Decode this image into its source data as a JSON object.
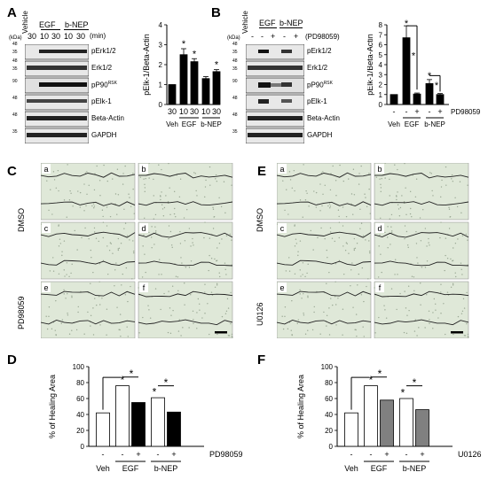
{
  "panels": {
    "A": "A",
    "B": "B",
    "C": "C",
    "D": "D",
    "E": "E",
    "F": "F"
  },
  "blot_A": {
    "kda": "(kDa)",
    "vehicle": "Vehicle",
    "egf": "EGF",
    "bnep": "b-NEP",
    "times": [
      "30",
      "10",
      "30",
      "10",
      "30"
    ],
    "min": "(min)",
    "rows": [
      {
        "marker": "48",
        "marker2": "35",
        "label": "pErk1/2"
      },
      {
        "marker": "48",
        "marker2": "35",
        "label": "Erk1/2"
      },
      {
        "marker": "90",
        "marker2": "",
        "label": "pP90",
        "sup": "RSK"
      },
      {
        "marker": "48",
        "marker2": "",
        "label": "pElk-1"
      },
      {
        "marker": "48",
        "marker2": "",
        "label": "Beta-Actin"
      },
      {
        "marker": "35",
        "marker2": "",
        "label": "GAPDH"
      }
    ]
  },
  "blot_B": {
    "kda": "(kDa)",
    "vehicle": "Vehicle",
    "egf": "EGF",
    "bnep": "b-NEP",
    "signs": [
      "-",
      "-",
      "+",
      "-",
      "+"
    ],
    "inhibitor": "(PD98059)",
    "rows": [
      {
        "marker": "48",
        "marker2": "35",
        "label": "pErk1/2"
      },
      {
        "marker": "48",
        "marker2": "35",
        "label": "Erk1/2"
      },
      {
        "marker": "90",
        "marker2": "",
        "label": "pP90",
        "sup": "RSK"
      },
      {
        "marker": "48",
        "marker2": "",
        "label": "pElk-1"
      },
      {
        "marker": "48",
        "marker2": "",
        "label": "Beta-Actin"
      },
      {
        "marker": "35",
        "marker2": "",
        "label": "GAPDH"
      }
    ]
  },
  "images_C": {
    "labels": [
      "a",
      "b",
      "c",
      "d",
      "e",
      "f"
    ],
    "row_labels": [
      "DMSO",
      "PD98059"
    ]
  },
  "images_E": {
    "labels": [
      "a",
      "b",
      "c",
      "d",
      "e",
      "f"
    ],
    "row_labels": [
      "DMSO",
      "U0126"
    ]
  },
  "chart_data": [
    {
      "id": "A",
      "type": "bar",
      "ylabel": "pElk-1/Beta-Actin",
      "ylim": [
        0,
        4
      ],
      "yticks": [
        0,
        1,
        2,
        3,
        4
      ],
      "categories": [
        "30",
        "10",
        "30",
        "10",
        "30"
      ],
      "values": [
        1.0,
        2.5,
        2.15,
        1.3,
        1.65
      ],
      "errors": [
        0,
        0.3,
        0.15,
        0.1,
        0.1
      ],
      "stars": [
        false,
        true,
        true,
        false,
        true
      ],
      "x_unit": "min",
      "groups": [
        "Veh",
        "EGF",
        "b-NEP"
      ]
    },
    {
      "id": "B",
      "type": "bar",
      "ylabel": "pElk-1/Beta-Actin",
      "ylim": [
        0,
        8
      ],
      "yticks": [
        0,
        1,
        2,
        3,
        4,
        5,
        6,
        7,
        8
      ],
      "categories": [
        "-",
        "-",
        "+",
        "-",
        "+"
      ],
      "values": [
        1.0,
        6.7,
        1.05,
        2.1,
        1.0
      ],
      "errors": [
        0,
        1.2,
        0.1,
        0.4,
        0.1
      ],
      "treatment": "PD98059",
      "groups": [
        "Veh",
        "EGF",
        "b-NEP"
      ]
    },
    {
      "id": "D",
      "type": "bar",
      "ylabel": "% of Healing Area",
      "ylim": [
        0,
        100
      ],
      "yticks": [
        0,
        20,
        40,
        60,
        80,
        100
      ],
      "categories": [
        "-",
        "-",
        "+",
        "-",
        "+"
      ],
      "values": [
        42,
        76,
        55,
        61,
        43
      ],
      "colors": [
        "#ffffff",
        "#ffffff",
        "#000000",
        "#ffffff",
        "#000000"
      ],
      "treatment": "PD98059",
      "groups": [
        "Veh",
        "EGF",
        "b-NEP"
      ]
    },
    {
      "id": "F",
      "type": "bar",
      "ylabel": "% of Healing Area",
      "ylim": [
        0,
        100
      ],
      "yticks": [
        0,
        20,
        40,
        60,
        80,
        100
      ],
      "categories": [
        "-",
        "-",
        "+",
        "-",
        "+"
      ],
      "values": [
        42,
        76,
        58,
        60,
        46
      ],
      "colors": [
        "#ffffff",
        "#ffffff",
        "#808080",
        "#ffffff",
        "#808080"
      ],
      "treatment": "U0126",
      "groups": [
        "Veh",
        "EGF",
        "b-NEP"
      ]
    }
  ]
}
